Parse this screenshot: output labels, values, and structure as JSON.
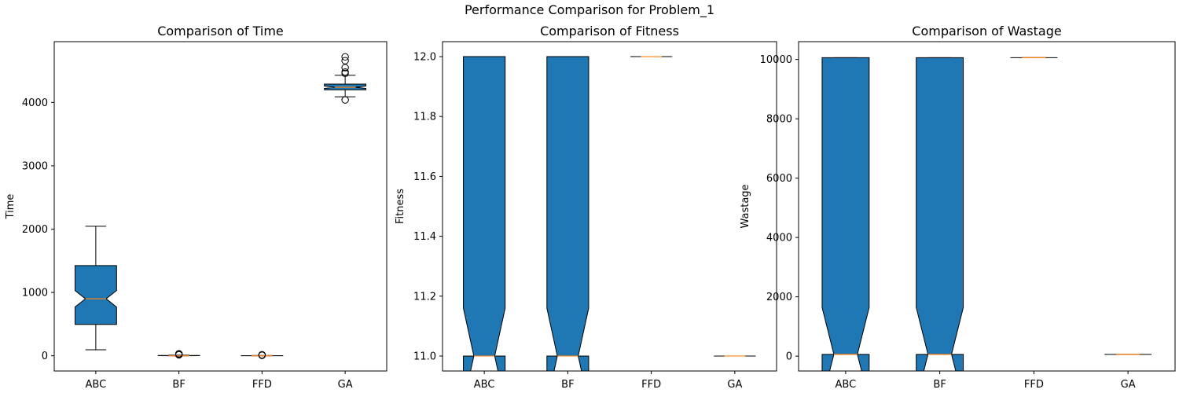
{
  "figure": {
    "suptitle": "Performance Comparison for Problem_1"
  },
  "colors": {
    "box": "#1f77b4",
    "median": "#ff7f0e",
    "edge": "#000000"
  },
  "chart_data": [
    {
      "type": "box",
      "notched": true,
      "title": "Comparison of Time",
      "xlabel": "",
      "ylabel": "Time",
      "categories": [
        "ABC",
        "BF",
        "FFD",
        "GA"
      ],
      "ylim": [
        -240,
        4960
      ],
      "yticks": [
        0,
        1000,
        2000,
        3000,
        4000
      ],
      "yticklabels": [
        "0",
        "1000",
        "2000",
        "3000",
        "4000"
      ],
      "boxes": [
        {
          "whislo": 95,
          "q1": 495,
          "med": 900,
          "q3": 1425,
          "whishi": 2045,
          "cilo": 770,
          "cihi": 1030,
          "fliers": []
        },
        {
          "whislo": 0,
          "q1": 0,
          "med": 0,
          "q3": 5,
          "whishi": 10,
          "cilo": 0,
          "cihi": 2,
          "fliers": [
            15,
            25,
            32
          ]
        },
        {
          "whislo": 0,
          "q1": 0,
          "med": 0,
          "q3": 2,
          "whishi": 5,
          "cilo": 0,
          "cihi": 1,
          "fliers": [
            8,
            12,
            16
          ]
        },
        {
          "whislo": 4090,
          "q1": 4200,
          "med": 4240,
          "q3": 4290,
          "whishi": 4430,
          "cilo": 4220,
          "cihi": 4260,
          "fliers": [
            4040,
            4460,
            4480,
            4550,
            4660,
            4720
          ]
        }
      ]
    },
    {
      "type": "box",
      "notched": true,
      "title": "Comparison of Fitness",
      "xlabel": "",
      "ylabel": "Fitness",
      "categories": [
        "ABC",
        "BF",
        "FFD",
        "GA"
      ],
      "ylim": [
        10.95,
        12.05
      ],
      "yticks": [
        11.0,
        11.2,
        11.4,
        11.6,
        11.8,
        12.0
      ],
      "yticklabels": [
        "11.0",
        "11.2",
        "11.4",
        "11.6",
        "11.8",
        "12.0"
      ],
      "boxes": [
        {
          "whislo": 11,
          "q1": 11,
          "med": 11,
          "q3": 12,
          "whishi": 12,
          "cilo": 10.84,
          "cihi": 11.16,
          "fliers": []
        },
        {
          "whislo": 11,
          "q1": 11,
          "med": 11,
          "q3": 12,
          "whishi": 12,
          "cilo": 10.84,
          "cihi": 11.16,
          "fliers": []
        },
        {
          "whislo": 12,
          "q1": 12,
          "med": 12,
          "q3": 12,
          "whishi": 12,
          "cilo": 12,
          "cihi": 12,
          "fliers": []
        },
        {
          "whislo": 11,
          "q1": 11,
          "med": 11,
          "q3": 11,
          "whishi": 11,
          "cilo": 11,
          "cihi": 11,
          "fliers": []
        }
      ]
    },
    {
      "type": "box",
      "notched": true,
      "title": "Comparison of Wastage",
      "xlabel": "",
      "ylabel": "Wastage",
      "categories": [
        "ABC",
        "BF",
        "FFD",
        "GA"
      ],
      "ylim": [
        -500,
        10600
      ],
      "yticks": [
        0,
        2000,
        4000,
        6000,
        8000,
        10000
      ],
      "yticklabels": [
        "0",
        "2000",
        "4000",
        "6000",
        "8000",
        "10000"
      ],
      "boxes": [
        {
          "whislo": 60,
          "q1": 60,
          "med": 60,
          "q3": 10060,
          "whishi": 10060,
          "cilo": -1500,
          "cihi": 1640,
          "fliers": []
        },
        {
          "whislo": 60,
          "q1": 60,
          "med": 60,
          "q3": 10060,
          "whishi": 10060,
          "cilo": -1500,
          "cihi": 1640,
          "fliers": []
        },
        {
          "whislo": 10060,
          "q1": 10060,
          "med": 10060,
          "q3": 10060,
          "whishi": 10060,
          "cilo": 10060,
          "cihi": 10060,
          "fliers": []
        },
        {
          "whislo": 60,
          "q1": 60,
          "med": 60,
          "q3": 60,
          "whishi": 60,
          "cilo": 60,
          "cihi": 60,
          "fliers": []
        }
      ]
    }
  ]
}
